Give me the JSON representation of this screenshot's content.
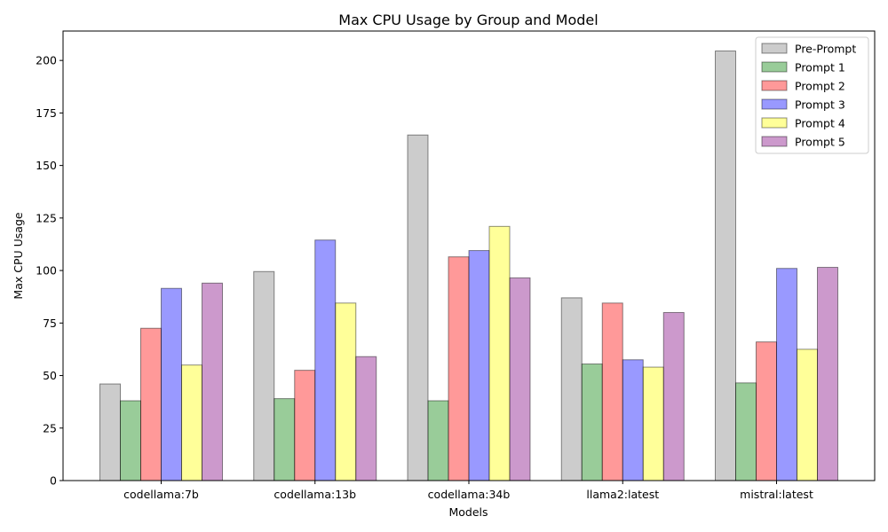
{
  "chart_data": {
    "type": "bar",
    "title": "Max CPU Usage by Group and Model",
    "xlabel": "Models",
    "ylabel": "Max CPU Usage",
    "categories": [
      "codellama:7b",
      "codellama:13b",
      "codellama:34b",
      "llama2:latest",
      "mistral:latest"
    ],
    "ylim": [
      0,
      214
    ],
    "yticks": [
      0,
      25,
      50,
      75,
      100,
      125,
      150,
      175,
      200
    ],
    "grid": false,
    "legend_position": "top-right",
    "series": [
      {
        "name": "Pre-Prompt",
        "color": "#999999",
        "values": [
          46,
          99.5,
          164.5,
          87,
          204.5
        ]
      },
      {
        "name": "Prompt 1",
        "color": "#339933",
        "values": [
          38,
          39,
          38,
          55.5,
          46.5
        ]
      },
      {
        "name": "Prompt 2",
        "color": "#ff3333",
        "values": [
          72.5,
          52.5,
          106.5,
          84.5,
          66
        ]
      },
      {
        "name": "Prompt 3",
        "color": "#3333ff",
        "values": [
          91.5,
          114.5,
          109.5,
          57.5,
          101
        ]
      },
      {
        "name": "Prompt 4",
        "color": "#ffff33",
        "values": [
          55,
          84.5,
          121,
          54,
          62.5
        ]
      },
      {
        "name": "Prompt 5",
        "color": "#993399",
        "values": [
          94,
          59,
          96.5,
          80,
          101.5
        ]
      }
    ]
  }
}
